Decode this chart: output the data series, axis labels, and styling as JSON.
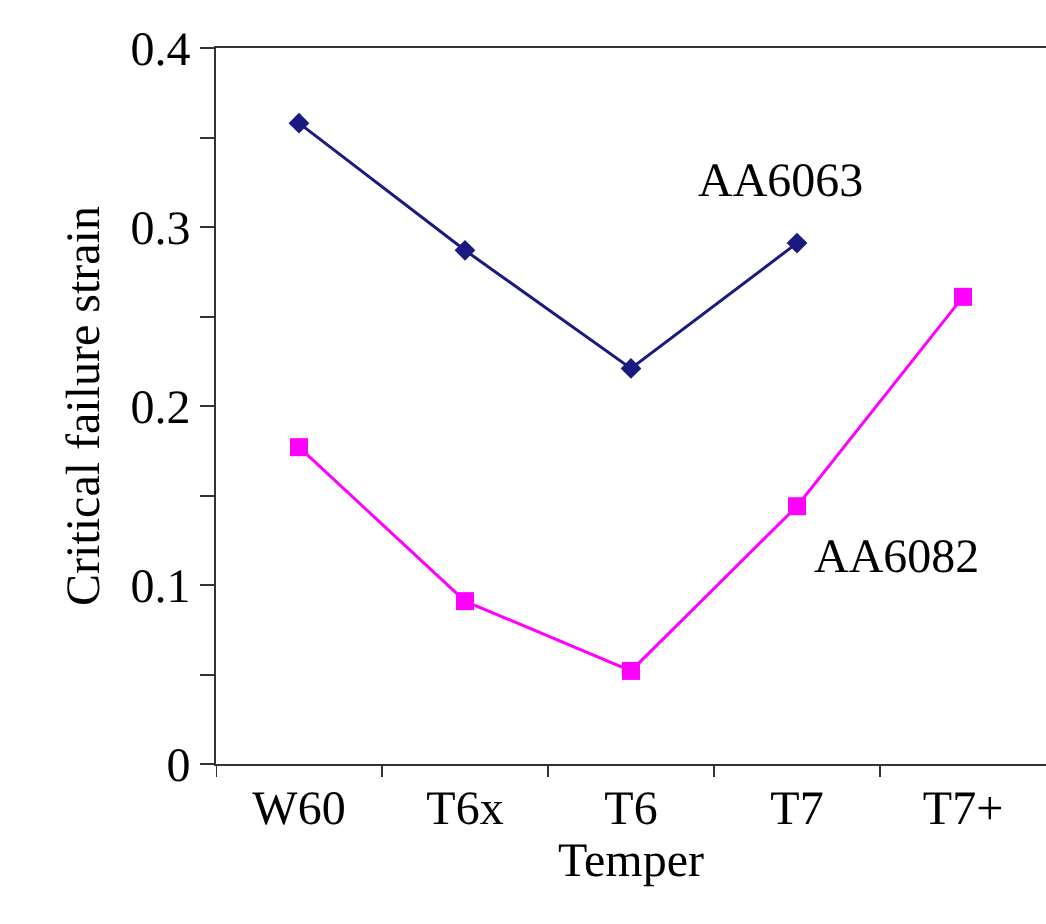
{
  "chart_data": {
    "type": "line",
    "xlabel": "Temper",
    "ylabel": "Critical failure strain",
    "categories": [
      "W60",
      "T6x",
      "T6",
      "T7",
      "T7+"
    ],
    "series": [
      {
        "name": "AA6063",
        "color": "#1a1a80",
        "marker": "diamond",
        "values": [
          0.358,
          0.287,
          0.221,
          0.291,
          null
        ]
      },
      {
        "name": "AA6082",
        "color": "#ff00ff",
        "marker": "square",
        "values": [
          0.177,
          0.091,
          0.052,
          0.144,
          0.261
        ]
      }
    ],
    "ylim": [
      0,
      0.4
    ],
    "yticks": [
      0,
      {
        "value": 0.05,
        "label": null
      },
      0.1,
      {
        "value": 0.15,
        "label": null
      },
      0.2,
      {
        "value": 0.25,
        "label": null
      },
      0.3,
      {
        "value": 0.35,
        "label": null
      },
      0.4
    ],
    "grid": false,
    "legend": false,
    "line_style": "solid"
  }
}
